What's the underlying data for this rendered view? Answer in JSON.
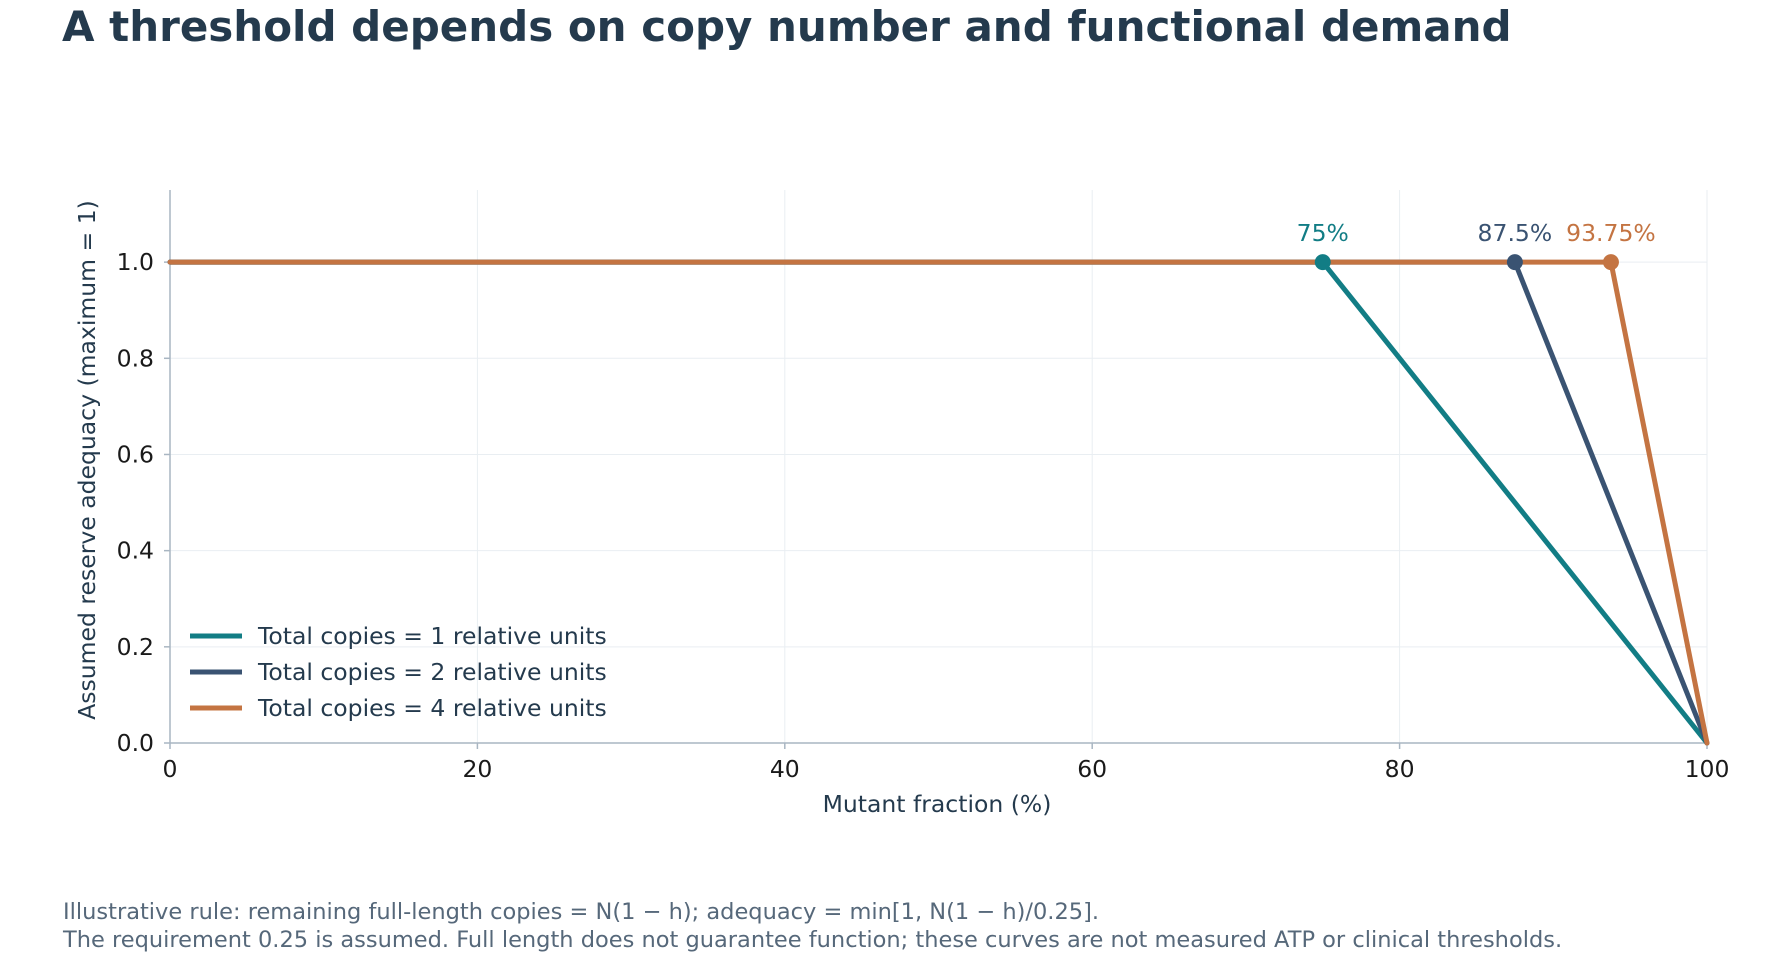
{
  "chart_data": {
    "type": "line",
    "title": "A threshold depends on copy number and functional demand",
    "xlabel": "Mutant fraction (%)",
    "ylabel": "Assumed reserve adequacy (maximum = 1)",
    "xlim": [
      0,
      100
    ],
    "ylim": [
      0,
      1.15
    ],
    "xticks": [
      0,
      20,
      40,
      60,
      80,
      100
    ],
    "yticks": [
      0.0,
      0.2,
      0.4,
      0.6,
      0.8,
      1.0
    ],
    "ytick_labels": [
      "0.0",
      "0.2",
      "0.4",
      "0.6",
      "0.8",
      "1.0"
    ],
    "grid": true,
    "legend_position": "bottom-left",
    "series": [
      {
        "name": "Total copies = 1 relative units",
        "color": "#127d85",
        "x": [
          0,
          75,
          100
        ],
        "y": [
          1.0,
          1.0,
          0.0
        ],
        "threshold": {
          "x": 75,
          "y": 1.0,
          "label": "75%"
        }
      },
      {
        "name": "Total copies = 2 relative units",
        "color": "#3a5372",
        "x": [
          0,
          87.5,
          100
        ],
        "y": [
          1.0,
          1.0,
          0.0
        ],
        "threshold": {
          "x": 87.5,
          "y": 1.0,
          "label": "87.5%"
        }
      },
      {
        "name": "Total copies = 4 relative units",
        "color": "#c47442",
        "x": [
          0,
          93.75,
          100
        ],
        "y": [
          1.0,
          1.0,
          0.0
        ],
        "threshold": {
          "x": 93.75,
          "y": 1.0,
          "label": "93.75%"
        }
      }
    ]
  },
  "footnotes": [
    "Illustrative rule: remaining full-length copies = N(1 − h); adequacy = min[1, N(1 − h)/0.25].",
    "The requirement 0.25 is assumed. Full length does not guarantee function; these curves are not measured ATP or clinical thresholds."
  ]
}
